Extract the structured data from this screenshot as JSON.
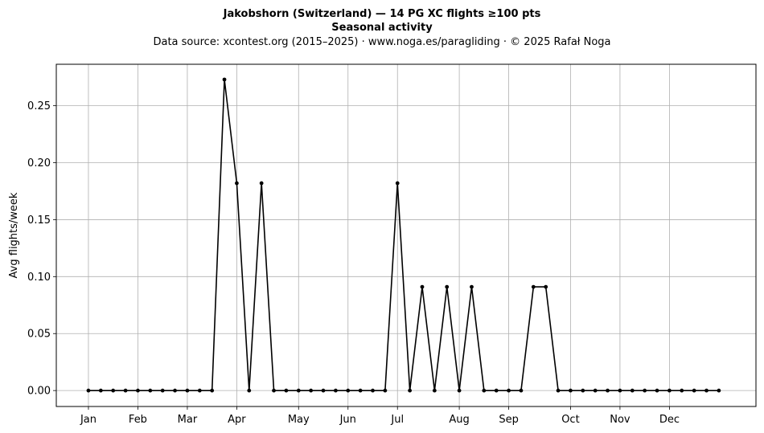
{
  "chart_data": {
    "type": "line",
    "title": "Jakobshorn (Switzerland)  —  14 PG XC flights ≥100 pts",
    "subtitle": "Seasonal activity",
    "source_line": "Data source: xcontest.org (2015–2025)  ·  www.noga.es/paragliding  ·  © 2025 Rafał Noga",
    "xlabel": "",
    "ylabel": "Avg flights/week",
    "ylim": [
      -0.014,
      0.2864
    ],
    "xlim": [
      -2.6,
      54
    ],
    "grid": true,
    "line_color": "#000000",
    "grid_color": "#b0b0b0",
    "yticks": [
      {
        "value": 0,
        "label": "0.00"
      },
      {
        "value": 0.05,
        "label": "0.05"
      },
      {
        "value": 0.1,
        "label": "0.10"
      },
      {
        "value": 0.15,
        "label": "0.15"
      },
      {
        "value": 0.2,
        "label": "0.20"
      },
      {
        "value": 0.25,
        "label": "0.25"
      }
    ],
    "xticks": [
      {
        "value": 0,
        "label": "Jan"
      },
      {
        "value": 4,
        "label": "Feb"
      },
      {
        "value": 8,
        "label": "Mar"
      },
      {
        "value": 12,
        "label": "Apr"
      },
      {
        "value": 17,
        "label": "May"
      },
      {
        "value": 21,
        "label": "Jun"
      },
      {
        "value": 25,
        "label": "Jul"
      },
      {
        "value": 30,
        "label": "Aug"
      },
      {
        "value": 34,
        "label": "Sep"
      },
      {
        "value": 39,
        "label": "Oct"
      },
      {
        "value": 43,
        "label": "Nov"
      },
      {
        "value": 47,
        "label": "Dec"
      }
    ],
    "series": [
      {
        "x": [
          0,
          1,
          2,
          3,
          4,
          5,
          6,
          7,
          8,
          9,
          10,
          11,
          12,
          13,
          14,
          15,
          16,
          17,
          18,
          19,
          20,
          21,
          22,
          23,
          24,
          25,
          26,
          27,
          28,
          29,
          30,
          31,
          32,
          33,
          34,
          35,
          36,
          37,
          38,
          39,
          40,
          41,
          42,
          43,
          44,
          45,
          46,
          47,
          48,
          49,
          50,
          51
        ],
        "values": [
          0,
          0,
          0,
          0,
          0,
          0,
          0,
          0,
          0,
          0,
          0,
          0.273,
          0.182,
          0,
          0.182,
          0,
          0,
          0,
          0,
          0,
          0,
          0,
          0,
          0,
          0,
          0.182,
          0,
          0.091,
          0,
          0.091,
          0,
          0.091,
          0,
          0,
          0,
          0,
          0.091,
          0.091,
          0,
          0,
          0,
          0,
          0,
          0,
          0,
          0,
          0,
          0,
          0,
          0,
          0,
          0
        ]
      }
    ]
  }
}
